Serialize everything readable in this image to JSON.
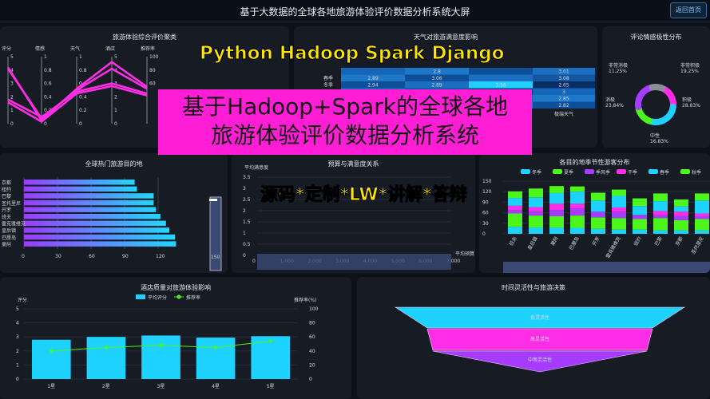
{
  "header": {
    "title": "基于大数据的全球各地旅游体验评价数据分析系统大屏",
    "back_label": "返回首页"
  },
  "overlay": {
    "line1": "Python Hadoop Spark Django",
    "line2": "基于Hadoop+Spark的全球各地",
    "line3": "旅游体验评价数据分析系统",
    "line4": "源码*定制*LW*讲解*答辩"
  },
  "colors": {
    "cyan": "#1ed2ff",
    "magenta": "#ff2ee6",
    "purple": "#a63cff",
    "green": "#4cf51a",
    "gray": "#8a8f99"
  },
  "chart_data": [
    {
      "type": "parallel",
      "title": "旅游体验综合评价聚类",
      "axes": [
        {
          "name": "评分",
          "range": [
            0,
            5
          ],
          "ticks": [
            "0",
            "1",
            "2",
            "3",
            "4",
            "5"
          ]
        },
        {
          "name": "情感",
          "range": [
            0,
            1
          ],
          "ticks": [
            "0",
            "0.2",
            "0.4",
            "0.6",
            "0.8",
            "1"
          ]
        },
        {
          "name": "天气",
          "range": [
            0,
            1
          ],
          "ticks": [
            "0",
            "0.2",
            "0.4",
            "0.6",
            "0.8",
            "1"
          ]
        },
        {
          "name": "酒店",
          "range": [
            0,
            5
          ],
          "ticks": [
            "0",
            "1",
            "2",
            "3",
            "4",
            "5"
          ]
        },
        {
          "name": "推荐率",
          "range": [
            0,
            100
          ],
          "ticks": [
            "60",
            "80",
            "100"
          ]
        }
      ],
      "lines": [
        [
          4.2,
          0.05,
          0.52,
          4.6,
          55
        ],
        [
          4.1,
          0.08,
          0.5,
          4.1,
          52
        ],
        [
          1.8,
          0.1,
          0.48,
          3.0,
          45
        ],
        [
          1.6,
          0.03,
          0.45,
          2.8,
          42
        ]
      ]
    },
    {
      "type": "heatmap",
      "title": "天气对旅游满意度影响",
      "rows": [
        "",
        "春季",
        "冬季",
        "",
        "",
        ""
      ],
      "columns": [
        "",
        "",
        "",
        "极端天气"
      ],
      "values": [
        [
          null,
          2.8,
          null,
          3.01
        ],
        [
          2.89,
          3.06,
          null,
          3.08
        ],
        [
          2.94,
          2.89,
          3.56,
          2.65
        ],
        [
          null,
          null,
          null,
          3
        ],
        [
          null,
          null,
          null,
          2.85
        ],
        [
          null,
          null,
          null,
          2.82
        ]
      ]
    },
    {
      "type": "pie",
      "title": "评论情感极性分布",
      "slices": [
        {
          "name": "非常积极",
          "value": 19.25,
          "label": "19.25%"
        },
        {
          "name": "积极",
          "value": 28.83,
          "label": "28.83%"
        },
        {
          "name": "中性",
          "value": 16.83,
          "label": "16.83%"
        },
        {
          "name": "消极",
          "value": 23.84,
          "label": "23.84%"
        },
        {
          "name": "非常消极",
          "value": 11.25,
          "label": "11.25%"
        }
      ]
    },
    {
      "type": "bar",
      "title": "全球热门旅游目的地",
      "categories": [
        "京都",
        "纽约",
        "巴黎",
        "圣托里尼",
        "开罗",
        "班夫",
        "雷克雅维克",
        "皇后镇",
        "巴厘岛",
        "果阿"
      ],
      "values": [
        99,
        101,
        116,
        116,
        118,
        122,
        127,
        130,
        135,
        136
      ],
      "xlim": [
        0,
        150
      ],
      "ticks": [
        "0",
        "30",
        "60",
        "90",
        "120"
      ],
      "slider_label": "150"
    },
    {
      "type": "scatter",
      "title": "预算与满意度关系",
      "ylabel": "平均满意度",
      "xlabel": "平均预算",
      "ylim": [
        0,
        3.5
      ],
      "xlim": [
        0,
        7000
      ],
      "yticks": [
        "0",
        "0.5",
        "1",
        "1.5",
        "2",
        "2.5",
        "3",
        "3.5"
      ],
      "xticks": [
        "0",
        "1,000",
        "2,000",
        "3,000",
        "4,000",
        "5,000",
        "6,000",
        "7,000"
      ]
    },
    {
      "type": "bar",
      "stacked": true,
      "title": "各目的地季节性游客分布",
      "legend": [
        "冬季",
        "夏季",
        "季风季",
        "干季",
        "春季",
        "秋季"
      ],
      "categories": [
        "班夫",
        "皇后镇",
        "果阿",
        "巴厘岛",
        "开罗",
        "雷克雅维克",
        "纽约",
        "巴黎",
        "京都",
        "圣托里尼"
      ],
      "yticks": [
        "0",
        "30",
        "60",
        "90",
        "120",
        "150"
      ],
      "ylim": [
        0,
        150
      ],
      "series": [
        {
          "name": "冬季",
          "values": [
            20,
            18,
            18,
            17,
            14,
            12,
            12,
            10,
            10,
            10
          ]
        },
        {
          "name": "夏季",
          "values": [
            38,
            34,
            32,
            35,
            33,
            33,
            30,
            35,
            29,
            32
          ]
        },
        {
          "name": "季风季",
          "values": [
            10,
            12,
            18,
            20,
            16,
            18,
            12,
            8,
            12,
            8
          ]
        },
        {
          "name": "干季",
          "values": [
            12,
            12,
            18,
            14,
            0,
            12,
            0,
            12,
            12,
            8
          ]
        },
        {
          "name": "春季",
          "values": [
            22,
            28,
            30,
            34,
            32,
            33,
            25,
            28,
            15,
            37
          ]
        },
        {
          "name": "秋季",
          "values": [
            19,
            25,
            20,
            15,
            22,
            18,
            22,
            22,
            20,
            20
          ]
        }
      ]
    },
    {
      "type": "bar-line",
      "title": "酒店质量对旅游体验影响",
      "ylabel": "评分",
      "y2label": "推荐率(%)",
      "legend": [
        "平均评分",
        "推荐率"
      ],
      "categories": [
        "1星",
        "2星",
        "3星",
        "4星",
        "5星"
      ],
      "ylim": [
        0,
        5
      ],
      "y2lim": [
        0,
        100
      ],
      "yticks": [
        "0",
        "1",
        "2",
        "3",
        "4",
        "5"
      ],
      "y2ticks": [
        "0",
        "20",
        "40",
        "60",
        "80",
        "100"
      ],
      "series": [
        {
          "name": "平均评分",
          "values": [
            2.8,
            3.0,
            3.1,
            2.95,
            3.05
          ]
        },
        {
          "name": "推荐率",
          "values": [
            40,
            45,
            48,
            45,
            54
          ]
        }
      ]
    },
    {
      "type": "funnel",
      "title": "时间灵活性与旅游决策",
      "stages": [
        "低灵活性",
        "高灵活性",
        "中等灵活性"
      ]
    }
  ]
}
